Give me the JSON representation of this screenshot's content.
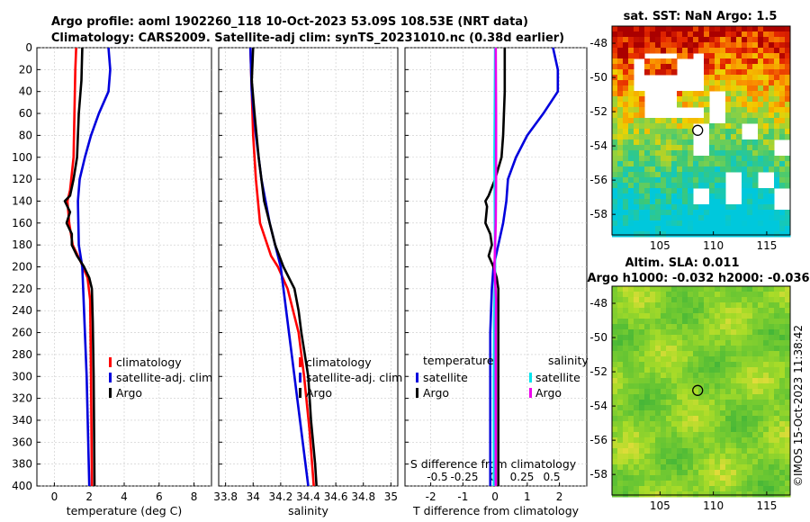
{
  "titles": {
    "line1": "Argo profile: aoml 1902260_118 10-Oct-2023 53.09S 108.53E (NRT data)",
    "line2": "Climatology: CARS2009. Satellite-adj clim: synTS_20231010.nc (0.38d earlier)"
  },
  "side_text": "©IMOS 15-Oct-2023 11:38:42",
  "colors": {
    "climatology": "#ff0000",
    "satellite": "#0000dd",
    "argo": "#000000",
    "sat_salinity": "#00e5ee",
    "clim_salinity": "#ee00ee"
  },
  "chart_data": [
    {
      "type": "line",
      "name": "temperature",
      "xlabel": "temperature (deg C)",
      "xlim": [
        -1,
        9
      ],
      "xticks": [
        "0",
        "2",
        "4",
        "6",
        "8"
      ],
      "ylim": [
        0,
        400
      ],
      "yticks": [
        "0",
        "20",
        "40",
        "60",
        "80",
        "100",
        "120",
        "140",
        "160",
        "180",
        "200",
        "220",
        "240",
        "260",
        "280",
        "300",
        "320",
        "340",
        "360",
        "380",
        "400"
      ],
      "legend": [
        "climatology",
        "satellite-adj. clim",
        "Argo"
      ],
      "series": [
        {
          "name": "climatology",
          "color": "red",
          "depth": [
            0,
            20,
            60,
            100,
            130,
            140,
            160,
            180,
            195,
            210,
            230,
            300,
            400
          ],
          "value": [
            1.25,
            1.2,
            1.15,
            1.1,
            0.9,
            0.75,
            0.85,
            1.05,
            1.5,
            1.9,
            2.05,
            2.1,
            2.15
          ]
        },
        {
          "name": "satellite-adj. clim",
          "color": "blue",
          "depth": [
            0,
            20,
            40,
            60,
            80,
            100,
            120,
            140,
            180,
            200,
            300,
            400
          ],
          "value": [
            3.1,
            3.2,
            3.1,
            2.55,
            2.1,
            1.75,
            1.45,
            1.35,
            1.4,
            1.6,
            1.85,
            2.0
          ]
        },
        {
          "name": "Argo",
          "color": "black",
          "depth": [
            0,
            30,
            60,
            100,
            120,
            135,
            140,
            150,
            160,
            170,
            180,
            190,
            200,
            210,
            220,
            250,
            300,
            400
          ],
          "value": [
            1.6,
            1.55,
            1.4,
            1.3,
            1.1,
            0.9,
            0.6,
            0.9,
            0.7,
            1.0,
            1.0,
            1.3,
            1.7,
            2.0,
            2.15,
            2.2,
            2.25,
            2.3
          ]
        }
      ]
    },
    {
      "type": "line",
      "name": "salinity",
      "xlabel": "salinity",
      "xlim": [
        33.75,
        35.05
      ],
      "xticks": [
        "33.8",
        "34",
        "34.2",
        "34.4",
        "34.6",
        "34.8",
        "35"
      ],
      "ylim": [
        0,
        400
      ],
      "legend": [
        "climatology",
        "satellite-adj. clim",
        "Argo"
      ],
      "series": [
        {
          "name": "climatology",
          "color": "red",
          "depth": [
            0,
            40,
            80,
            120,
            160,
            190,
            200,
            220,
            260,
            300,
            350,
            400
          ],
          "value": [
            33.98,
            33.99,
            34.0,
            34.02,
            34.05,
            34.13,
            34.18,
            34.25,
            34.33,
            34.37,
            34.41,
            34.44
          ]
        },
        {
          "name": "satellite-adj. clim",
          "color": "blue",
          "depth": [
            0,
            40,
            80,
            120,
            160,
            200,
            240,
            280,
            320,
            360,
            400
          ],
          "value": [
            33.98,
            33.99,
            34.02,
            34.06,
            34.12,
            34.2,
            34.24,
            34.28,
            34.32,
            34.36,
            34.4
          ]
        },
        {
          "name": "Argo",
          "color": "black",
          "depth": [
            0,
            30,
            60,
            100,
            140,
            160,
            180,
            200,
            220,
            240,
            260,
            300,
            340,
            380,
            400
          ],
          "value": [
            34.0,
            33.99,
            34.01,
            34.04,
            34.08,
            34.12,
            34.16,
            34.22,
            34.3,
            34.33,
            34.35,
            34.4,
            34.42,
            34.45,
            34.46
          ]
        }
      ]
    },
    {
      "type": "line",
      "name": "difference",
      "xlabel": "T difference from climatology",
      "xlabel2": "S difference from climatology",
      "xlim": [
        -2.8,
        2.85
      ],
      "xticks": [
        "-2",
        "-1",
        "0",
        "1",
        "2"
      ],
      "xticks2": [
        "-0.5",
        "-0.25",
        "0",
        "0.25",
        "0.5"
      ],
      "ylim": [
        0,
        400
      ],
      "legend_left": {
        "title": "temperature",
        "items": [
          "satellite",
          "Argo"
        ]
      },
      "legend_right": {
        "title": "salinity",
        "items": [
          "satellite",
          "Argo"
        ]
      },
      "series": [
        {
          "name": "T satellite",
          "color": "blue",
          "depth": [
            0,
            20,
            40,
            60,
            80,
            100,
            120,
            140,
            160,
            180,
            200,
            220,
            260,
            300,
            400
          ],
          "value": [
            1.8,
            1.95,
            1.95,
            1.5,
            1.0,
            0.65,
            0.4,
            0.35,
            0.25,
            0.1,
            -0.05,
            -0.1,
            -0.15,
            -0.15,
            -0.15
          ]
        },
        {
          "name": "T Argo",
          "color": "black",
          "depth": [
            0,
            40,
            80,
            100,
            120,
            135,
            140,
            145,
            160,
            170,
            180,
            190,
            200,
            210,
            220,
            240,
            300,
            400
          ],
          "value": [
            0.3,
            0.3,
            0.25,
            0.2,
            0.0,
            -0.2,
            -0.3,
            -0.25,
            -0.3,
            -0.15,
            -0.1,
            -0.2,
            -0.05,
            0.05,
            0.1,
            0.1,
            0.1,
            0.1
          ]
        },
        {
          "name": "S satellite",
          "color": "cyan",
          "depth": [
            0,
            100,
            200,
            250,
            300,
            400
          ],
          "value": [
            0.0,
            -0.02,
            0.0,
            -0.03,
            -0.04,
            -0.04
          ]
        },
        {
          "name": "S Argo",
          "color": "magenta",
          "depth": [
            0,
            60,
            120,
            160,
            200,
            230,
            260,
            300,
            400
          ],
          "value": [
            0.02,
            0.03,
            0.03,
            0.02,
            -0.02,
            0.03,
            0.02,
            0.02,
            0.02
          ]
        }
      ]
    },
    {
      "type": "heatmap",
      "name": "sst_map",
      "title": "sat. SST: NaN Argo: 1.5",
      "xlim": [
        100.5,
        117.2
      ],
      "ylim": [
        -59.2,
        -47.0
      ],
      "xticks": [
        "105",
        "110",
        "115"
      ],
      "yticks": [
        "-48",
        "-50",
        "-52",
        "-54",
        "-56",
        "-58"
      ],
      "argo_position": {
        "lon": 108.53,
        "lat": -53.09
      }
    },
    {
      "type": "heatmap",
      "name": "sla_map",
      "title": "Altim. SLA: 0.011",
      "subtitle": "Argo h1000: -0.032 h2000: -0.036",
      "xlim": [
        100.5,
        117.2
      ],
      "ylim": [
        -59.2,
        -47.0
      ],
      "xticks": [
        "105",
        "110",
        "115"
      ],
      "yticks": [
        "-48",
        "-50",
        "-52",
        "-54",
        "-56",
        "-58"
      ],
      "argo_position": {
        "lon": 108.53,
        "lat": -53.09
      }
    }
  ]
}
